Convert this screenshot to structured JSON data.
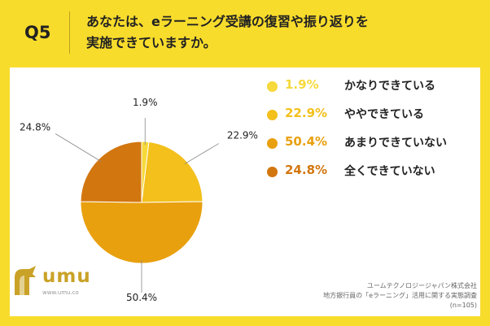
{
  "header": {
    "qnum": "Q5",
    "question_line1": "あなたは、eラーニング受講の復習や振り返りを",
    "question_line2": "実施できていますか。"
  },
  "chart_data": {
    "type": "pie",
    "slices": [
      {
        "label": "かなりできている",
        "value": 1.9,
        "display": "1.9%",
        "color": "#f6d93a"
      },
      {
        "label": "ややできている",
        "value": 22.9,
        "display": "22.9%",
        "color": "#f3c01c"
      },
      {
        "label": "あまりできていない",
        "value": 50.4,
        "display": "50.4%",
        "color": "#e8a00e"
      },
      {
        "label": "全くできていない",
        "value": 24.8,
        "display": "24.8%",
        "color": "#d2760f"
      }
    ]
  },
  "logo": {
    "text": "umu",
    "url": "www.umu.co"
  },
  "source": {
    "line1": "ユームテクノロジージャパン株式会社",
    "line2": "地方銀行員の「eラーニング」活用に関する実態調査",
    "line3": "(n=105)"
  }
}
